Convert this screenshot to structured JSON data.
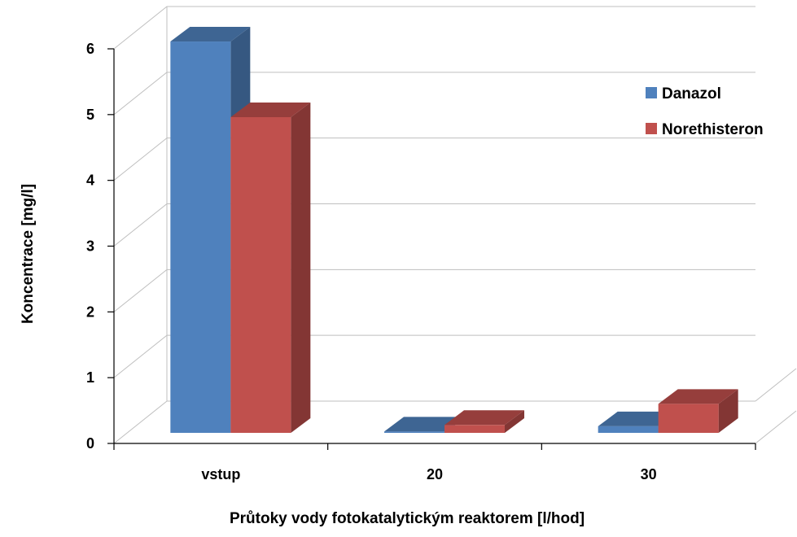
{
  "chart_data": {
    "type": "bar",
    "title": "",
    "xlabel": "Průtoky vody fotokatalytickým reaktorem [l/hod]",
    "ylabel": "Koncentrace [mg/l]",
    "categories": [
      "vstup",
      "20",
      "30"
    ],
    "series": [
      {
        "name": "Danazol",
        "values": [
          5.95,
          0.02,
          0.1
        ],
        "color": "#4F81BD"
      },
      {
        "name": "Norethisteron",
        "values": [
          4.8,
          0.12,
          0.44
        ],
        "color": "#C0504D"
      }
    ],
    "ylim": [
      0,
      6
    ],
    "yticks": [
      "0",
      "1",
      "2",
      "3",
      "4",
      "5",
      "6"
    ],
    "grid": true,
    "legend": "right",
    "style": "3d-clustered-column"
  }
}
